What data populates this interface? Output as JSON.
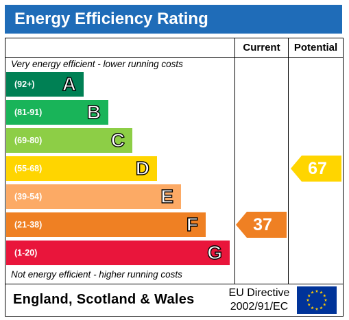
{
  "title": "Energy Efficiency Rating",
  "columns": {
    "current": "Current",
    "potential": "Potential"
  },
  "notes": {
    "top": "Very energy efficient - lower running costs",
    "bottom": "Not energy efficient - higher running costs"
  },
  "chart_data": {
    "type": "bar",
    "categories": [
      "A",
      "B",
      "C",
      "D",
      "E",
      "F",
      "G"
    ],
    "bands": [
      {
        "letter": "A",
        "range": "(92+)",
        "color": "#008054"
      },
      {
        "letter": "B",
        "range": "(81-91)",
        "color": "#19b459"
      },
      {
        "letter": "C",
        "range": "(69-80)",
        "color": "#8dce46"
      },
      {
        "letter": "D",
        "range": "(55-68)",
        "color": "#ffd500"
      },
      {
        "letter": "E",
        "range": "(39-54)",
        "color": "#fcaa65"
      },
      {
        "letter": "F",
        "range": "(21-38)",
        "color": "#ef8023"
      },
      {
        "letter": "G",
        "range": "(1-20)",
        "color": "#e9153b"
      }
    ],
    "current": {
      "value": 37,
      "label": "37",
      "band": "F",
      "color": "#ef8023"
    },
    "potential": {
      "value": 67,
      "label": "67",
      "band": "D",
      "color": "#ffd500"
    }
  },
  "footer": {
    "region": "England, Scotland & Wales",
    "directive_line1": "EU Directive",
    "directive_line2": "2002/91/EC"
  },
  "colors": {
    "title_bar": "#1f6cb8",
    "eu_flag": "#003399",
    "eu_star": "#ffcc00"
  }
}
